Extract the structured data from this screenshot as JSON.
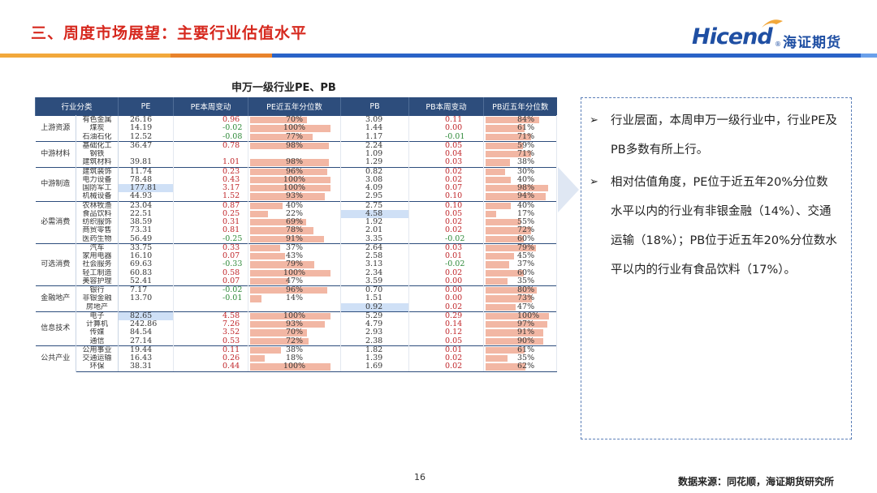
{
  "slide": {
    "title": "三、周度市场展望：主要行业估值水平",
    "page_number": "16",
    "source": "数据来源：同花顺，海证期货研究所"
  },
  "logo": {
    "latin": "Hicend",
    "reg": "®",
    "chinese": "海证期货",
    "color": "#1f4fa3"
  },
  "table": {
    "title": "申万一级行业PE、PB",
    "headers": [
      "行业分类",
      "PE",
      "PE本周变动",
      "PE近五年分位数",
      "PB",
      "PB本周变动",
      "PB近五年分位数"
    ],
    "groups": [
      {
        "name": "上游资源",
        "rows": [
          {
            "ind": "有色金属",
            "pe": "26.16",
            "pe_chg": "0.96",
            "pe_pct": "70%",
            "pb": "3.09",
            "pb_chg": "0.11",
            "pb_pct": "84%"
          },
          {
            "ind": "煤炭",
            "pe": "14.19",
            "pe_chg": "-0.02",
            "pe_pct": "100%",
            "pb": "1.44",
            "pb_chg": "0.00",
            "pb_pct": "61%"
          },
          {
            "ind": "石油石化",
            "pe": "12.52",
            "pe_chg": "-0.08",
            "pe_pct": "77%",
            "pb": "1.17",
            "pb_chg": "-0.01",
            "pb_pct": "71%"
          }
        ]
      },
      {
        "name": "中游材料",
        "rows": [
          {
            "ind": "基础化工",
            "pe": "36.47",
            "pe_chg": "0.78",
            "pe_pct": "98%",
            "pb": "2.24",
            "pb_chg": "0.05",
            "pb_pct": "59%"
          },
          {
            "ind": "钢铁",
            "pe": "",
            "pe_chg": "",
            "pe_pct": "",
            "pb": "1.09",
            "pb_chg": "0.04",
            "pb_pct": "71%"
          },
          {
            "ind": "建筑材料",
            "pe": "39.81",
            "pe_chg": "1.01",
            "pe_pct": "98%",
            "pb": "1.29",
            "pb_chg": "0.03",
            "pb_pct": "38%"
          }
        ]
      },
      {
        "name": "中游制造",
        "rows": [
          {
            "ind": "建筑装饰",
            "pe": "11.74",
            "pe_chg": "0.23",
            "pe_pct": "96%",
            "pb": "0.82",
            "pb_chg": "0.02",
            "pb_pct": "30%"
          },
          {
            "ind": "电力设备",
            "pe": "78.48",
            "pe_chg": "0.43",
            "pe_pct": "100%",
            "pb": "3.08",
            "pb_chg": "0.02",
            "pb_pct": "40%"
          },
          {
            "ind": "国防军工",
            "pe": "177.81",
            "pe_chg": "3.17",
            "pe_pct": "100%",
            "pb": "4.09",
            "pb_chg": "0.07",
            "pb_pct": "98%"
          },
          {
            "ind": "机械设备",
            "pe": "44.93",
            "pe_chg": "1.52",
            "pe_pct": "93%",
            "pb": "2.95",
            "pb_chg": "0.10",
            "pb_pct": "94%"
          }
        ]
      },
      {
        "name": "必需消费",
        "rows": [
          {
            "ind": "农林牧渔",
            "pe": "23.04",
            "pe_chg": "0.87",
            "pe_pct": "40%",
            "pb": "2.75",
            "pb_chg": "0.10",
            "pb_pct": "40%"
          },
          {
            "ind": "食品饮料",
            "pe": "22.51",
            "pe_chg": "0.25",
            "pe_pct": "22%",
            "pb": "4.58",
            "pb_chg": "0.05",
            "pb_pct": "17%"
          },
          {
            "ind": "纺织服饰",
            "pe": "38.59",
            "pe_chg": "0.31",
            "pe_pct": "69%",
            "pb": "1.92",
            "pb_chg": "0.02",
            "pb_pct": "55%"
          },
          {
            "ind": "商贸零售",
            "pe": "73.31",
            "pe_chg": "0.81",
            "pe_pct": "78%",
            "pb": "2.01",
            "pb_chg": "0.02",
            "pb_pct": "72%"
          },
          {
            "ind": "医药生物",
            "pe": "56.49",
            "pe_chg": "-0.25",
            "pe_pct": "91%",
            "pb": "3.35",
            "pb_chg": "-0.02",
            "pb_pct": "60%"
          }
        ]
      },
      {
        "name": "可选消费",
        "rows": [
          {
            "ind": "汽车",
            "pe": "33.75",
            "pe_chg": "0.33",
            "pe_pct": "37%",
            "pb": "2.64",
            "pb_chg": "0.03",
            "pb_pct": "79%"
          },
          {
            "ind": "家用电器",
            "pe": "16.10",
            "pe_chg": "0.07",
            "pe_pct": "43%",
            "pb": "2.58",
            "pb_chg": "0.01",
            "pb_pct": "45%"
          },
          {
            "ind": "社会服务",
            "pe": "69.63",
            "pe_chg": "-0.33",
            "pe_pct": "79%",
            "pb": "3.13",
            "pb_chg": "-0.02",
            "pb_pct": "37%"
          },
          {
            "ind": "轻工制造",
            "pe": "60.83",
            "pe_chg": "0.58",
            "pe_pct": "100%",
            "pb": "2.34",
            "pb_chg": "0.02",
            "pb_pct": "60%"
          },
          {
            "ind": "美容护理",
            "pe": "52.41",
            "pe_chg": "0.07",
            "pe_pct": "47%",
            "pb": "3.59",
            "pb_chg": "0.00",
            "pb_pct": "35%"
          }
        ]
      },
      {
        "name": "金融地产",
        "rows": [
          {
            "ind": "银行",
            "pe": "7.17",
            "pe_chg": "-0.02",
            "pe_pct": "96%",
            "pb": "0.70",
            "pb_chg": "0.00",
            "pb_pct": "80%"
          },
          {
            "ind": "非银金融",
            "pe": "13.70",
            "pe_chg": "-0.01",
            "pe_pct": "14%",
            "pb": "1.51",
            "pb_chg": "0.00",
            "pb_pct": "73%"
          },
          {
            "ind": "房地产",
            "pe": "",
            "pe_chg": "",
            "pe_pct": "",
            "pb": "0.92",
            "pb_chg": "0.02",
            "pb_pct": "47%"
          }
        ]
      },
      {
        "name": "信息技术",
        "rows": [
          {
            "ind": "电子",
            "pe": "82.65",
            "pe_chg": "4.58",
            "pe_pct": "100%",
            "pb": "5.29",
            "pb_chg": "0.29",
            "pb_pct": "100%"
          },
          {
            "ind": "计算机",
            "pe": "242.86",
            "pe_chg": "7.26",
            "pe_pct": "93%",
            "pb": "4.79",
            "pb_chg": "0.14",
            "pb_pct": "97%"
          },
          {
            "ind": "传媒",
            "pe": "84.54",
            "pe_chg": "3.52",
            "pe_pct": "70%",
            "pb": "2.93",
            "pb_chg": "0.12",
            "pb_pct": "91%"
          },
          {
            "ind": "通信",
            "pe": "27.14",
            "pe_chg": "0.53",
            "pe_pct": "72%",
            "pb": "2.38",
            "pb_chg": "0.05",
            "pb_pct": "90%"
          }
        ]
      },
      {
        "name": "公共产业",
        "rows": [
          {
            "ind": "公用事业",
            "pe": "19.44",
            "pe_chg": "0.11",
            "pe_pct": "38%",
            "pb": "1.82",
            "pb_chg": "0.01",
            "pb_pct": "61%"
          },
          {
            "ind": "交通运输",
            "pe": "16.43",
            "pe_chg": "0.26",
            "pe_pct": "18%",
            "pb": "1.39",
            "pb_chg": "0.02",
            "pb_pct": "35%"
          },
          {
            "ind": "环保",
            "pe": "38.31",
            "pe_chg": "0.44",
            "pe_pct": "100%",
            "pb": "1.69",
            "pb_chg": "0.02",
            "pb_pct": "62%"
          }
        ]
      }
    ]
  },
  "panel": {
    "bullets": [
      {
        "marker": "➢",
        "text": "行业层面，本周申万一级行业中，行业PE及PB多数有所上行。"
      },
      {
        "marker": "➢",
        "text": "相对估值角度，PE位于近五年20%分位数水平以内的行业有非银金融（14%）、交通运输（18%）；PB位于近五年20%分位数水平以内的行业有食品饮料（17%）。"
      }
    ]
  }
}
